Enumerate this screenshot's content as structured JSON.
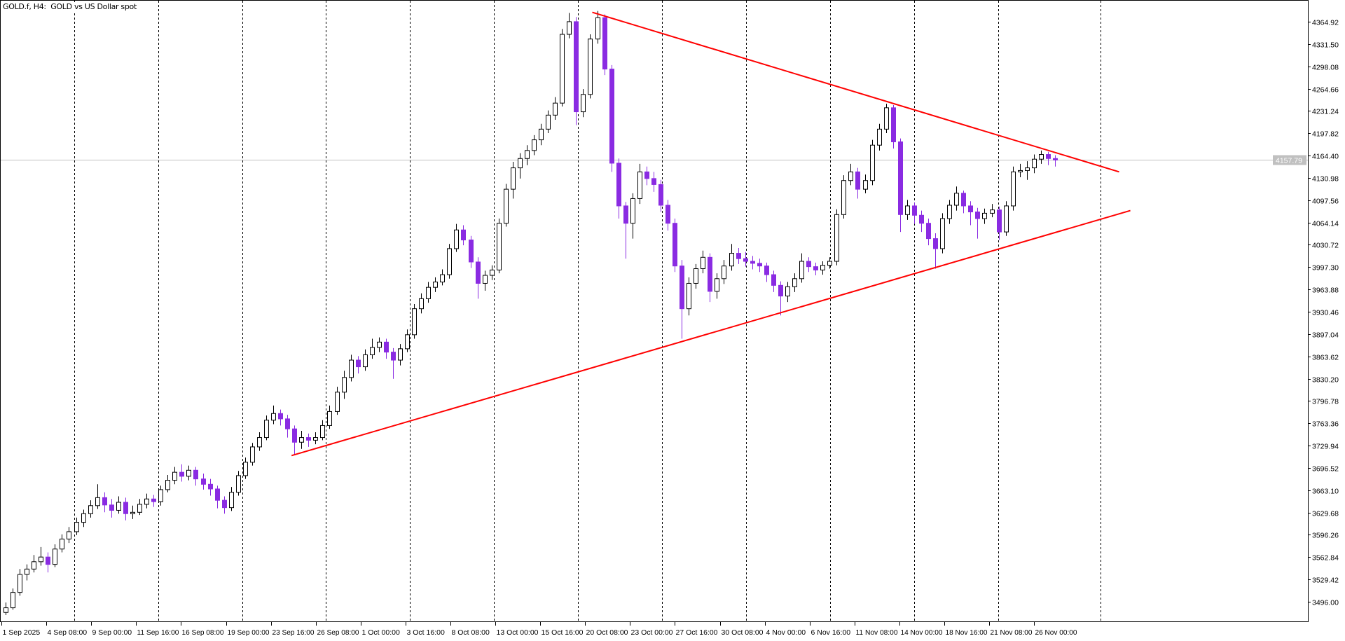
{
  "window": {
    "title": "GOLD.f, H4:  GOLD vs US Dollar spot"
  },
  "colors": {
    "bull_body": "#ffffff",
    "bull_outline": "#000000",
    "bear": "#8a2be2",
    "trendline": "#ff0000",
    "grid": "#000000",
    "price_line": "#c0c0c0",
    "price_label_bg": "#c0c0c0",
    "price_label_text": "#ffffff"
  },
  "chart_data": {
    "type": "candlestick",
    "symbol": "GOLD.f",
    "timeframe": "H4",
    "description": "GOLD vs US Dollar spot",
    "grid": "vertical dashed period separators",
    "ylim": [
      3480,
      4390
    ],
    "y_ticks": [
      "4364.92",
      "4331.50",
      "4298.08",
      "4264.66",
      "4231.24",
      "4197.82",
      "4164.40",
      "4130.98",
      "4097.56",
      "4064.14",
      "4030.72",
      "3997.30",
      "3963.88",
      "3930.46",
      "3897.04",
      "3863.62",
      "3830.20",
      "3796.78",
      "3763.36",
      "3729.94",
      "3696.52",
      "3663.10",
      "3629.68",
      "3596.26",
      "3562.84",
      "3529.42",
      "3496.00"
    ],
    "x_ticks": [
      "1 Sep 2025",
      "4 Sep 08:00",
      "9 Sep 00:00",
      "11 Sep 16:00",
      "16 Sep 08:00",
      "19 Sep 00:00",
      "23 Sep 16:00",
      "26 Sep 08:00",
      "1 Oct 00:00",
      "3 Oct 16:00",
      "8 Oct 08:00",
      "13 Oct 00:00",
      "15 Oct 16:00",
      "20 Oct 08:00",
      "23 Oct 00:00",
      "27 Oct 16:00",
      "30 Oct 08:00",
      "4 Nov 00:00",
      "6 Nov 16:00",
      "11 Nov 08:00",
      "14 Nov 00:00",
      "18 Nov 16:00",
      "21 Nov 08:00",
      "26 Nov 00:00"
    ],
    "current_price": "4157.79",
    "candles_ohlc": [
      [
        3480,
        3495,
        3476,
        3487
      ],
      [
        3487,
        3516,
        3484,
        3510
      ],
      [
        3510,
        3545,
        3505,
        3537
      ],
      [
        3537,
        3552,
        3528,
        3545
      ],
      [
        3545,
        3566,
        3540,
        3556
      ],
      [
        3556,
        3578,
        3550,
        3563
      ],
      [
        3563,
        3570,
        3540,
        3552
      ],
      [
        3552,
        3582,
        3548,
        3575
      ],
      [
        3575,
        3597,
        3570,
        3590
      ],
      [
        3590,
        3608,
        3584,
        3601
      ],
      [
        3601,
        3622,
        3596,
        3615
      ],
      [
        3615,
        3634,
        3608,
        3628
      ],
      [
        3628,
        3648,
        3622,
        3640
      ],
      [
        3640,
        3672,
        3635,
        3652
      ],
      [
        3652,
        3660,
        3630,
        3641
      ],
      [
        3641,
        3650,
        3622,
        3633
      ],
      [
        3633,
        3654,
        3628,
        3645
      ],
      [
        3645,
        3652,
        3618,
        3628
      ],
      [
        3628,
        3640,
        3620,
        3630
      ],
      [
        3630,
        3650,
        3626,
        3642
      ],
      [
        3642,
        3658,
        3636,
        3650
      ],
      [
        3650,
        3656,
        3638,
        3646
      ],
      [
        3646,
        3670,
        3640,
        3664
      ],
      [
        3664,
        3686,
        3660,
        3678
      ],
      [
        3678,
        3698,
        3672,
        3690
      ],
      [
        3690,
        3702,
        3676,
        3684
      ],
      [
        3684,
        3700,
        3678,
        3693
      ],
      [
        3693,
        3698,
        3670,
        3680
      ],
      [
        3680,
        3688,
        3664,
        3672
      ],
      [
        3672,
        3680,
        3655,
        3665
      ],
      [
        3665,
        3670,
        3636,
        3648
      ],
      [
        3648,
        3654,
        3628,
        3637
      ],
      [
        3637,
        3668,
        3632,
        3660
      ],
      [
        3660,
        3692,
        3655,
        3685
      ],
      [
        3685,
        3712,
        3680,
        3705
      ],
      [
        3705,
        3734,
        3700,
        3728
      ],
      [
        3728,
        3750,
        3722,
        3742
      ],
      [
        3742,
        3775,
        3738,
        3768
      ],
      [
        3768,
        3790,
        3762,
        3778
      ],
      [
        3778,
        3784,
        3760,
        3770
      ],
      [
        3770,
        3776,
        3742,
        3755
      ],
      [
        3755,
        3760,
        3716,
        3735
      ],
      [
        3735,
        3752,
        3725,
        3742
      ],
      [
        3742,
        3748,
        3728,
        3738
      ],
      [
        3738,
        3750,
        3732,
        3742
      ],
      [
        3742,
        3768,
        3738,
        3760
      ],
      [
        3760,
        3790,
        3755,
        3781
      ],
      [
        3781,
        3818,
        3776,
        3810
      ],
      [
        3810,
        3842,
        3800,
        3832
      ],
      [
        3832,
        3866,
        3826,
        3858
      ],
      [
        3858,
        3864,
        3838,
        3848
      ],
      [
        3848,
        3874,
        3842,
        3866
      ],
      [
        3866,
        3890,
        3860,
        3877
      ],
      [
        3877,
        3892,
        3870,
        3885
      ],
      [
        3885,
        3890,
        3860,
        3870
      ],
      [
        3870,
        3876,
        3830,
        3858
      ],
      [
        3858,
        3882,
        3850,
        3875
      ],
      [
        3875,
        3904,
        3870,
        3896
      ],
      [
        3896,
        3942,
        3890,
        3935
      ],
      [
        3935,
        3958,
        3928,
        3950
      ],
      [
        3950,
        3975,
        3944,
        3967
      ],
      [
        3967,
        3982,
        3960,
        3975
      ],
      [
        3975,
        3994,
        3970,
        3986
      ],
      [
        3986,
        4032,
        3980,
        4025
      ],
      [
        4025,
        4062,
        4020,
        4053
      ],
      [
        4053,
        4060,
        4030,
        4038
      ],
      [
        4038,
        4044,
        3996,
        4005
      ],
      [
        4005,
        4012,
        3950,
        3973
      ],
      [
        3973,
        3992,
        3962,
        3985
      ],
      [
        3985,
        4000,
        3978,
        3993
      ],
      [
        3993,
        4070,
        3988,
        4063
      ],
      [
        4063,
        4122,
        4058,
        4114
      ],
      [
        4114,
        4155,
        4100,
        4146
      ],
      [
        4146,
        4168,
        4130,
        4160
      ],
      [
        4160,
        4180,
        4150,
        4172
      ],
      [
        4172,
        4195,
        4165,
        4188
      ],
      [
        4188,
        4212,
        4180,
        4204
      ],
      [
        4204,
        4232,
        4198,
        4225
      ],
      [
        4225,
        4252,
        4218,
        4243
      ],
      [
        4243,
        4354,
        4238,
        4346
      ],
      [
        4346,
        4378,
        4340,
        4365
      ],
      [
        4365,
        4372,
        4210,
        4230
      ],
      [
        4230,
        4264,
        4222,
        4256
      ],
      [
        4256,
        4346,
        4250,
        4339
      ],
      [
        4339,
        4381,
        4332,
        4371
      ],
      [
        4371,
        4376,
        4285,
        4294
      ],
      [
        4294,
        4300,
        4140,
        4153
      ],
      [
        4153,
        4160,
        4070,
        4089
      ],
      [
        4089,
        4095,
        4010,
        4063
      ],
      [
        4063,
        4108,
        4040,
        4100
      ],
      [
        4100,
        4152,
        4092,
        4140
      ],
      [
        4140,
        4148,
        4120,
        4130
      ],
      [
        4130,
        4140,
        4110,
        4121
      ],
      [
        4121,
        4128,
        4080,
        4090
      ],
      [
        4090,
        4098,
        4052,
        4063
      ],
      [
        4063,
        4070,
        3990,
        3999
      ],
      [
        3999,
        4008,
        3890,
        3935
      ],
      [
        3935,
        3982,
        3925,
        3973
      ],
      [
        3973,
        4002,
        3965,
        3995
      ],
      [
        3995,
        4022,
        3988,
        4012
      ],
      [
        4012,
        4018,
        3945,
        3961
      ],
      [
        3961,
        3988,
        3950,
        3980
      ],
      [
        3980,
        4008,
        3972,
        3999
      ],
      [
        3999,
        4032,
        3992,
        4018
      ],
      [
        4018,
        4026,
        4002,
        4010
      ],
      [
        4010,
        4020,
        3998,
        4006
      ],
      [
        4006,
        4014,
        3994,
        4003
      ],
      [
        4003,
        4010,
        3990,
        3999
      ],
      [
        3999,
        4004,
        3975,
        3986
      ],
      [
        3986,
        3992,
        3960,
        3970
      ],
      [
        3970,
        3976,
        3925,
        3954
      ],
      [
        3954,
        3975,
        3945,
        3968
      ],
      [
        3968,
        3988,
        3960,
        3980
      ],
      [
        3980,
        4018,
        3974,
        4006
      ],
      [
        4006,
        4012,
        3990,
        3998
      ],
      [
        3998,
        4004,
        3985,
        3993
      ],
      [
        3993,
        4006,
        3986,
        4000
      ],
      [
        4000,
        4012,
        3995,
        4006
      ],
      [
        4006,
        4084,
        4000,
        4076
      ],
      [
        4076,
        4135,
        4070,
        4127
      ],
      [
        4127,
        4152,
        4120,
        4140
      ],
      [
        4140,
        4146,
        4100,
        4114
      ],
      [
        4114,
        4136,
        4108,
        4127
      ],
      [
        4127,
        4188,
        4120,
        4180
      ],
      [
        4180,
        4212,
        4172,
        4204
      ],
      [
        4204,
        4242,
        4198,
        4236
      ],
      [
        4236,
        4240,
        4175,
        4185
      ],
      [
        4185,
        4190,
        4050,
        4076
      ],
      [
        4076,
        4098,
        4068,
        4089
      ],
      [
        4089,
        4094,
        4062,
        4075
      ],
      [
        4075,
        4082,
        4050,
        4063
      ],
      [
        4063,
        4070,
        4030,
        4040
      ],
      [
        4040,
        4048,
        3995,
        4025
      ],
      [
        4025,
        4078,
        4018,
        4070
      ],
      [
        4070,
        4098,
        4062,
        4090
      ],
      [
        4090,
        4118,
        4082,
        4108
      ],
      [
        4108,
        4112,
        4078,
        4089
      ],
      [
        4089,
        4096,
        4060,
        4080
      ],
      [
        4080,
        4086,
        4040,
        4070
      ],
      [
        4070,
        4085,
        4062,
        4078
      ],
      [
        4078,
        4092,
        4072,
        4083
      ],
      [
        4083,
        4088,
        4038,
        4050
      ],
      [
        4050,
        4096,
        4044,
        4089
      ],
      [
        4089,
        4148,
        4082,
        4140
      ],
      [
        4140,
        4152,
        4132,
        4142
      ],
      [
        4142,
        4156,
        4128,
        4146
      ],
      [
        4146,
        4166,
        4138,
        4159
      ],
      [
        4159,
        4172,
        4152,
        4166
      ],
      [
        4166,
        4170,
        4150,
        4160
      ],
      [
        4160,
        4165,
        4148,
        4157.79
      ]
    ],
    "trendlines": [
      {
        "role": "descending-resistance",
        "from": {
          "bar": 83.3,
          "price": 4379
        },
        "to": {
          "bar": 158.1,
          "price": 4140
        }
      },
      {
        "role": "ascending-support",
        "from": {
          "bar": 40.6,
          "price": 3715
        },
        "to": {
          "bar": 159.7,
          "price": 4082
        }
      }
    ]
  }
}
